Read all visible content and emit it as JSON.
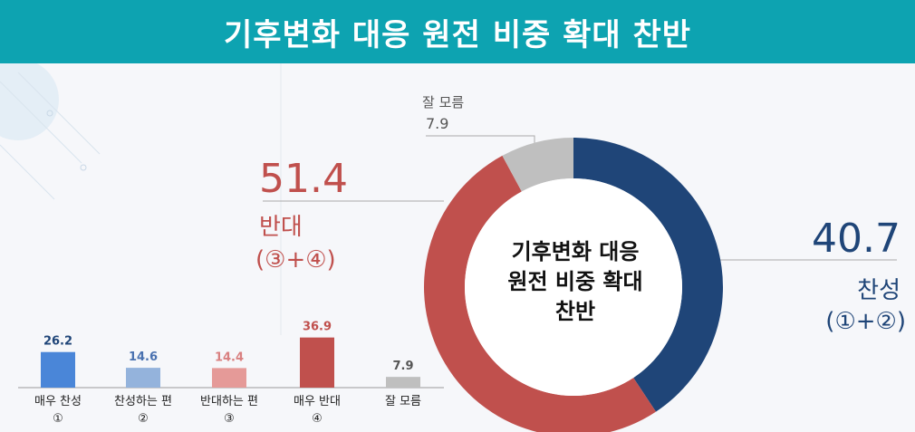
{
  "header": {
    "title": "기후변화 대응 원전 비중 확대 찬반"
  },
  "center_label": {
    "line1": "기후변화 대응",
    "line2": "원전 비중 확대",
    "line3": "찬반"
  },
  "colors": {
    "header": "#0da3b1",
    "agree": "#1f4578",
    "oppose": "#c0504d",
    "unknown": "#bfbfbf"
  },
  "chart_data": [
    {
      "type": "pie",
      "variant": "donut",
      "slices": [
        {
          "label": "찬성",
          "sub": "(①+②)",
          "value": 40.7,
          "color": "#1f4578"
        },
        {
          "label": "반대",
          "sub": "(③+④)",
          "value": 51.4,
          "color": "#c0504d"
        },
        {
          "label": "잘 모름",
          "sub": "",
          "value": 7.9,
          "color": "#bfbfbf"
        }
      ]
    },
    {
      "type": "bar",
      "categories": [
        "매우 찬성",
        "찬성하는 편",
        "반대하는 편",
        "매우 반대",
        "잘 모름"
      ],
      "markers": [
        "①",
        "②",
        "③",
        "④",
        ""
      ],
      "values": [
        26.2,
        14.6,
        14.4,
        36.9,
        7.9
      ],
      "colors": [
        "#4a86d8",
        "#94b3dc",
        "#e59a98",
        "#c0504d",
        "#bfbfbf"
      ],
      "label_colors": [
        "#1f4578",
        "#4a72b0",
        "#d98080",
        "#c0504d",
        "#555555"
      ],
      "ylim": [
        0,
        40
      ]
    }
  ]
}
